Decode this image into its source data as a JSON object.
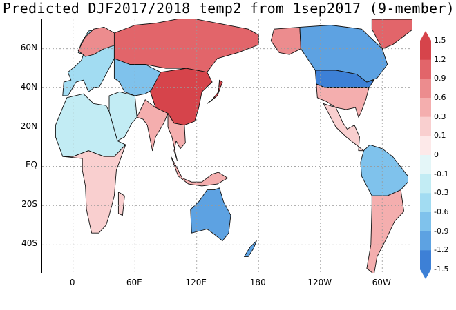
{
  "title": "Predicted DJF2017/2018 temp2 from 1sep2017 (9-member)",
  "map": {
    "lat_labels": [
      {
        "text": "60N",
        "lat": 60
      },
      {
        "text": "40N",
        "lat": 40
      },
      {
        "text": "20N",
        "lat": 20
      },
      {
        "text": "EQ",
        "lat": 0
      },
      {
        "text": "20S",
        "lat": -20
      },
      {
        "text": "40S",
        "lat": -40
      }
    ],
    "lon_labels": [
      {
        "text": "0",
        "lon": 0
      },
      {
        "text": "60E",
        "lon": 60
      },
      {
        "text": "120E",
        "lon": 120
      },
      {
        "text": "180",
        "lon": 180
      },
      {
        "text": "120W",
        "lon": 240
      },
      {
        "text": "60W",
        "lon": 300
      }
    ],
    "lon_range": [
      -30,
      330
    ],
    "lat_range": [
      -55,
      75
    ],
    "gridlines": true,
    "anomaly_regions": [
      {
        "region": "Western Europe",
        "value": -0.3
      },
      {
        "region": "Northern Europe / Scandinavia",
        "value": 0.9
      },
      {
        "region": "Siberia",
        "value": 1.2
      },
      {
        "region": "Central Asia",
        "value": -0.6
      },
      {
        "region": "Tibet / China",
        "value": 1.5
      },
      {
        "region": "North Africa",
        "value": -0.1
      },
      {
        "region": "Central Africa",
        "value": 0.3
      },
      {
        "region": "India",
        "value": 0.6
      },
      {
        "region": "Southeast Asia",
        "value": 0.6
      },
      {
        "region": "Australia",
        "value": -0.9
      },
      {
        "region": "Alaska",
        "value": 0.9
      },
      {
        "region": "Canada",
        "value": -0.9
      },
      {
        "region": "Northern United States",
        "value": -1.2
      },
      {
        "region": "Eastern United States",
        "value": 0.6
      },
      {
        "region": "Mexico",
        "value": 0.3
      },
      {
        "region": "Greenland",
        "value": 1.2
      },
      {
        "region": "Northern South America",
        "value": -0.6
      },
      {
        "region": "Southern South America",
        "value": 0.6
      }
    ]
  },
  "colorbar": {
    "labels": [
      "1.5",
      "1.2",
      "0.9",
      "0.6",
      "0.3",
      "0.1",
      "0",
      "-0.1",
      "-0.3",
      "-0.6",
      "-0.9",
      "-1.2",
      "-1.5"
    ],
    "colors": [
      "#d6444b",
      "#e2656a",
      "#ec8c8e",
      "#f4aeae",
      "#f9cfcf",
      "#fde9e9",
      "#e4f6f8",
      "#c2ecf4",
      "#a2dcf2",
      "#7fc2ec",
      "#5da2e2",
      "#3d80d6"
    ]
  }
}
